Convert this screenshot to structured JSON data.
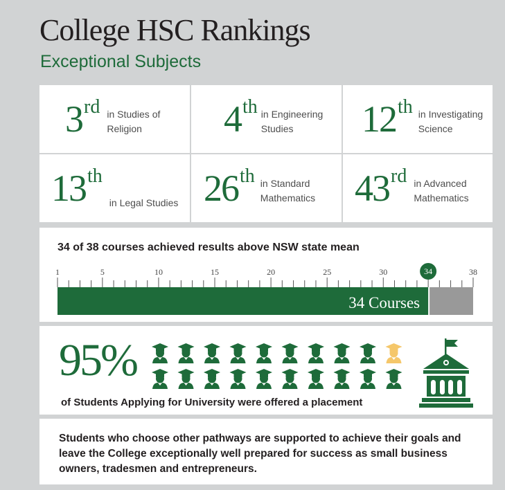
{
  "header": {
    "title": "College HSC Rankings",
    "subtitle": "Exceptional Subjects"
  },
  "rankings": [
    {
      "num": "3",
      "suffix": "rd",
      "subject": "in Studies of Religion"
    },
    {
      "num": "4",
      "suffix": "th",
      "subject": "in Engineering Studies"
    },
    {
      "num": "12",
      "suffix": "th",
      "subject": "in Investigating Science"
    },
    {
      "num": "13",
      "suffix": "th",
      "subject": "in Legal Studies"
    },
    {
      "num": "26",
      "suffix": "th",
      "subject": "in Standard Mathematics"
    },
    {
      "num": "43",
      "suffix": "rd",
      "subject": "in Advanced Mathematics"
    }
  ],
  "courses": {
    "title": "34 of 38 courses achieved results above NSW state mean",
    "ticks": [
      "1",
      "5",
      "10",
      "15",
      "20",
      "25",
      "30",
      "34",
      "38"
    ],
    "bar_label": "34 Courses",
    "achieved": 34,
    "total": 38
  },
  "placement": {
    "percent": "95%",
    "text": "of Students Applying for University were offered a placement",
    "icons_total": 20,
    "icons_highlighted": 19
  },
  "pathways": {
    "text": "Students who choose other pathways are supported to achieve their goals and leave the College exceptionally well prepared for success as small business owners, tradesmen and entrepreneurs."
  },
  "colors": {
    "green": "#1e6b3a",
    "grey": "#999999",
    "gold": "#f5c76a"
  }
}
